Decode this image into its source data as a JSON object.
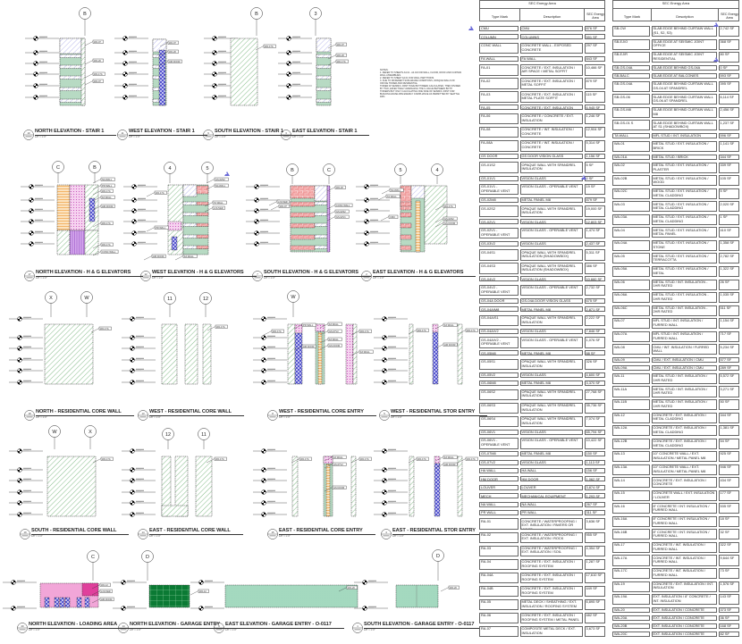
{
  "sheet": {
    "notes": {
      "heading": "NOTES:",
      "lines": [
        "1. REFER TO SHEETS A4.01 - A4.04 FOR WALL, FLOOR, ROOF AND CURTAIN WALL ASSEMBLIES.",
        "2. REFER TO SHEET A4.01 FOR WALL PARTITIONS.",
        "3. DUE TO DIFFERENT SUB-GRADE CONDITIONS, OPAQUE WALLS OF OFFICE TOWER AND RESIDENTIAL",
        "TOWER AT SEISMIC JOINT HAVE BOTH BEEN CALCULATED, THEN DIVIDED BY TWO, EFFECTIVELY AVERAGING THE U-VALUE BETWEEN BOTH TOWERS BUT ONLY CALCULATING ONE SIDE OF SEISMIC JOINT FOR BUILDING ENVELOPE ENERGY COMPLIANCE AS PERMITTED BY SEATTLE DPD."
      ]
    },
    "colors": {
      "hatch_green": "#4f9e55",
      "solid_green": "#b7dac3",
      "hatch_purple": "#8c8ce0",
      "red_grid": "#e85a5a",
      "blue_cross": "#3a3ac8",
      "pink": "#f2a6d8",
      "magenta": "#e0409c",
      "dark_green": "#0b7a34",
      "orange": "#f0a040",
      "revision": "#6a6ad8"
    },
    "scale": "1/8\" = 1'-0\"",
    "views": [
      {
        "number": "10",
        "title": "NORTH ELEVATION - STAIR 1",
        "grids": [
          "B"
        ],
        "tags": [
          "WA-07",
          "WA-20",
          "WA-17A",
          "WA-07"
        ]
      },
      {
        "number": "11",
        "title": "WEST ELEVATION - STAIR 1",
        "grids": [],
        "tags": [
          "WA-07",
          "WA-20",
          "HM DOOR"
        ]
      },
      {
        "number": "9",
        "title": "SOUTH ELEVATION - STAIR 1",
        "grids": [
          "B"
        ],
        "tags": [
          "WA-17A"
        ]
      },
      {
        "number": "3",
        "title": "EAST ELEVATION - STAIR 1",
        "grids": [
          "3"
        ],
        "tags": [
          "WA-07",
          "WA-20",
          "WA-17A"
        ]
      },
      {
        "number": "17",
        "title": "NORTH ELEVATION - H & G ELEVATORS",
        "grids": [
          "C",
          "B"
        ],
        "tags": [
          "NA WALL",
          "PR WALL",
          "WA-17A",
          "FA WALL",
          "HM DOOR",
          "WA-17A",
          "WA-17A",
          "CONC WALL"
        ]
      },
      {
        "number": "12",
        "title": "WEST ELEVATION - H & G ELEVATORS",
        "grids": [
          "4",
          "5"
        ],
        "tags": [
          "WA-17A",
          "GS-02S2",
          "NA WALL",
          "TA WALL",
          "LOUVER",
          "PR WALL",
          "HM DOOR",
          "FA WALL"
        ]
      },
      {
        "number": "7",
        "title": "SOUTH ELEVATION - H & G ELEVATORS",
        "grids": [
          "B",
          "C"
        ],
        "tags": [
          "LOUVER",
          "WA-07",
          "WA-20",
          "CONC WALL",
          "GS-02S2",
          "GS-02V1"
        ]
      },
      {
        "number": "2",
        "title": "EAST ELEVATION - H & G ELEVATORS",
        "grids": [
          "5",
          "4"
        ],
        "tags": [
          "NA WALL",
          "TA WALL",
          "CMU",
          "WA-17A",
          "GS-02S2",
          "GS DOOR"
        ]
      },
      {
        "number": "18",
        "title": "NORTH - RESIDENTIAL CORE WALL",
        "grids": [
          "X",
          "W"
        ],
        "tags": [
          "WA-17A"
        ]
      },
      {
        "number": "13",
        "title": "WEST - RESIDENTIAL CORE WALL",
        "grids": [
          "11",
          "12"
        ],
        "tags": [
          "WA-17A"
        ]
      },
      {
        "number": "8",
        "title": "WEST - RESIDENTIAL CORE ENTRY",
        "grids": [
          "W"
        ],
        "tags": [
          "WA-17A",
          "PR WALL",
          "HM DOOR",
          "FA WALL",
          "GS-07V2",
          "FA WALL",
          "GS DOOR",
          "WA-17A",
          "FA WALL"
        ]
      },
      {
        "number": "5",
        "title": "WEST - RESIDENTIAL STOR ENTRY",
        "grids": [],
        "tags": [
          "WA-17A",
          "FA WALL",
          "HM DOOR",
          "WA-17A"
        ]
      },
      {
        "number": "19",
        "title": "SOUTH - RESIDENTIAL CORE WALL",
        "grids": [
          "W",
          "X"
        ],
        "tags": [
          "WA-17A"
        ]
      },
      {
        "number": "14",
        "title": "EAST - RESIDENTIAL CORE WALL",
        "grids": [
          "12",
          "11"
        ],
        "tags": [
          "WA-17A"
        ]
      },
      {
        "number": "15",
        "title": "EAST - RESIDENTIAL CORE ENTRY",
        "grids": [],
        "tags": [
          "WA-17A",
          "FA WALL",
          "GS-07V2",
          "GS DOOR",
          "WA-17A"
        ]
      },
      {
        "number": "4",
        "title": "EAST - RESIDENTIAL STOR ENTRY",
        "grids": [],
        "tags": [
          "WA-17A",
          "FA WALL",
          "HM DOOR",
          "WA-17A"
        ]
      },
      {
        "number": "20",
        "title": "NORTH ELEVATION - LOADING AREA",
        "grids": [
          "C"
        ],
        "tags": [
          "WA-12",
          "LOUVER",
          "HM DOOR"
        ]
      },
      {
        "number": "14",
        "title": "NORTH ELEVATION - GARAGE ENTRY",
        "grids": [
          "D"
        ],
        "tags": [
          "WA-12"
        ]
      },
      {
        "number": "6",
        "title": "EAST ELEVATION - GARAGE ENTRY - O-0117",
        "grids": [],
        "tags": [
          "WA-20"
        ]
      },
      {
        "number": "1",
        "title": "SOUTH ELEVATION - GARAGE ENTRY - O-0117",
        "grids": [
          "D"
        ],
        "tags": [
          "WA-20"
        ]
      }
    ]
  },
  "schedules": [
    {
      "title": "SEC Energy Area",
      "columns": [
        "Type Mark",
        "Description",
        "SEC Energy Area"
      ],
      "rows": [
        [
          "CMU",
          "CMU",
          "876 SF"
        ],
        [
          "COLUMN",
          "COLUMNS",
          "591 SF"
        ],
        [
          "CONC WALL",
          "CONCRETE WALL - EXPOSED CONCRETE",
          "297 SF"
        ],
        [
          "FA WALL",
          "FA WALL",
          "843 SF"
        ],
        [
          "FA-01",
          "CONCRETE / EXT. INSULATION / AIR SPACE / METAL SOFFIT",
          "10,466 SF"
        ],
        [
          "FA-02",
          "CONCRETE / EXT. INSULATION / METAL SOFFIT",
          "879 SF"
        ],
        [
          "FA-03",
          "CONCRETE / EXT. INSULATION / METAL PLATE SOFFIT",
          "115 SF"
        ],
        [
          "FA-05",
          "CONCRETE / EXT. INSULATION",
          "6,945 SF"
        ],
        [
          "FA-06",
          "CONCRETE / CONCRETE / EXT. INSULATION",
          "1,246 SF"
        ],
        [
          "FA-08",
          "CONCRETE / INT. INSULATION / CONCRETE",
          "12,904 SF"
        ],
        [
          "FA-08A",
          "CONCRETE / INT. INSULATION / CONCRETE",
          "5,314 SF"
        ],
        [
          "GS DOOR",
          "GS DOOR VISION GLASS",
          "1,156 SF"
        ],
        [
          "GS-01S2",
          "OPAQUE WALL WITH SPANDREL INSULATION",
          "5 SF"
        ],
        [
          "GS-01V1",
          "VISION GLASS",
          "0 SF"
        ],
        [
          "GS-01V1 - OPERABLE VENT",
          "VISION GLASS - OPERABLE VENT",
          "19 SF"
        ],
        [
          "GS-02M8",
          "METAL PANEL M8",
          "879 SF"
        ],
        [
          "GS-02S2",
          "OPAQUE WALL WITH SPANDREL INSULATION",
          "19,000 SF"
        ],
        [
          "GS-02V1",
          "VISION GLASS",
          "12,803 SF"
        ],
        [
          "GS-02V1 - OPERABLE VENT",
          "VISION GLASS - OPERABLE VENT",
          "1,474 SF"
        ],
        [
          "GS-03V2",
          "VISION GLASS",
          "2,437 SF"
        ],
        [
          "GS-04S1",
          "OPAQUE WALL WITH SPANDREL INSULATION (SHADOWBOX)",
          "5,311 SF"
        ],
        [
          "GS-04S3",
          "OPAQUE WALL WITH SPANDREL INSULATION (SHADOWBOX)",
          "386 SF"
        ],
        [
          "GS-04V2",
          "VISION GLASS",
          "10,660 SF"
        ],
        [
          "GS-04V2 - OPERABLE VENT",
          "VISION GLASS - OPERABLE VENT",
          "2,732 SF"
        ],
        [
          "GS-04A DOOR",
          "GS-04A DOOR VISION GLASS",
          "675 SF"
        ],
        [
          "GS-04A/M8",
          "METAL PANEL M8",
          "2,871 SF"
        ],
        [
          "GS-04A/S1",
          "OPAQUE WALL WITH SPANDREL INSULATION",
          "2,222 SF"
        ],
        [
          "GS-04A/V2",
          "VISION GLASS",
          "7,846 SF"
        ],
        [
          "GS-04A/V2 - OPERABLE VENT",
          "VISION GLASS - OPERABLE VENT",
          "1,076 SF"
        ],
        [
          "GS-05M8",
          "METAL PANEL M8",
          "88 SF"
        ],
        [
          "GS-05S1",
          "OPAQUE WALL WITH SPANDREL INSULATION",
          "326 SF"
        ],
        [
          "GS-05V2",
          "VISION GLASS",
          "4,600 SF"
        ],
        [
          "GS-06M8",
          "METAL PANEL M8",
          "3,370 SF"
        ],
        [
          "GS-06S2",
          "OPAQUE WALL WITH SPANDREL INSULATION",
          "27,768 SF"
        ],
        [
          "GS-06S3",
          "OPAQUE WALL WITH SPANDREL INSULATION",
          "35,736 SF"
        ],
        [
          "GS-06S4",
          "OPAQUE WALL WITH SPANDREL INSULATION",
          "7,074 SF"
        ],
        [
          "GS-06V1",
          "VISION GLASS",
          "65,794 SF"
        ],
        [
          "GS-06V1 - OPERABLE VENT",
          "VISION GLASS - OPERABLE VENT",
          "10,422 SF"
        ],
        [
          "GS-07M8",
          "METAL PANEL M8",
          "150 SF"
        ],
        [
          "GS-07V2",
          "VISION GLASS",
          "1,113 SF"
        ],
        [
          "HA WALL",
          "HA WALL",
          "156 SF"
        ],
        [
          "HM DOOR",
          "HM DOOR",
          "1,062 SF"
        ],
        [
          "LOUVER",
          "LOUVER",
          "3,874 SF"
        ],
        [
          "MECH",
          "MECHANICAL EQUIPMENT",
          "1,293 SF"
        ],
        [
          "NA WALL",
          "NA WALL",
          "267 SF"
        ],
        [
          "PR WALL",
          "PR WALL",
          "311 SF"
        ],
        [
          "RA-01",
          "CONCRETE / WATERPROOFING / EXT. INSULATION / PAVERS OR WOOD",
          "3,636 SF"
        ],
        [
          "RA-02",
          "CONCRETE / WATERPROOFING / EXT. INSULATION / ROCK",
          "955 SF"
        ],
        [
          "RA-03",
          "CONCRETE / WATERPROOFING / EXT. INSULATION / SOIL",
          "4,354 SF"
        ],
        [
          "RA-04",
          "CONCRETE / EXT. INSULATION / ROOFING SYSTEM",
          "1,287 SF"
        ],
        [
          "RA-04A",
          "CONCRETE / EXT. INSULATION / ROOFING SYSTEM",
          "17,610 SF"
        ],
        [
          "RA-04B",
          "CONCRETE / EXT. INSULATION / ROOFING SYSTEM",
          "449 SF"
        ],
        [
          "RA-05",
          "METAL DECK / SHEATHING / EXT. INSULATION / ROOFING SYSTEM",
          "6,895 SF"
        ],
        [
          "RA-06",
          "CONCRETE / EXT. INSULATION / ROOFING SYSTEM / METAL PANEL",
          "482 SF"
        ],
        [
          "RA-07",
          "COMPOSITE METAL DECK / EXT. INSULATION",
          "3,673 SF"
        ]
      ]
    },
    {
      "title": "SEC Energy Area",
      "columns": [
        "Type Mark",
        "Description",
        "SEC Energy Area"
      ],
      "rows": [
        [
          "SB-CW",
          "SLAB EDGE BEHIND CURTAIN WALL (S1, S2, S3)",
          "2,742 SF"
        ],
        [
          "SB-EJ/O",
          "SLAB EDGE AT SEISMIC JOINT OFFICE",
          "368 SF"
        ],
        [
          "SB-EJ/R",
          "SLAB EDGE AT SEISMIC JOINT RESIDENTIAL",
          "80 SF"
        ],
        [
          "SB-GS-04A",
          "SLAB EDGE BEHIND GS-04A",
          "0 SF"
        ],
        [
          "SB-BALC",
          "SLAB EDGE AT BALCONIES",
          "593 SF"
        ],
        [
          "SB-GS-04A",
          "SLAB EDGE BEHIND CURTAIN WALL GS-04 AT SPANDREL",
          "395 SF"
        ],
        [
          "SB-GS-06",
          "SLAB EDGE BEHIND CURTAIN WALL GS-06 AT SPANDREL",
          "6,114 SF"
        ],
        [
          "SB-GS-M8",
          "SLAB EDGE BEHIND CURTAIN WALL M8",
          "2,456 SF"
        ],
        [
          "SB-GS-01 S",
          "SLAB EDGE BEHIND CURTAIN WALL AT S1 (SHADOWBOX)",
          "1,237 SF"
        ],
        [
          "TA WALL",
          "MFL STUD / INT. INSULATION",
          "596 SF"
        ],
        [
          "WA-01",
          "METAL STUD / EXT. INSULATION / BRICK",
          "1,141 SF"
        ],
        [
          "WA-01A",
          "METAL STUD / BRICK",
          "344 SF"
        ],
        [
          "WA-02",
          "METAL STUD / EXT. INSULATION / PLASTER",
          "339 SF"
        ],
        [
          "WA-02B",
          "METAL STUD / EXT. INSULATION / WOOD",
          "105 SF"
        ],
        [
          "WA-02C",
          "METAL STUD / EXT. INSULATION / METAL CLADDING",
          "5 SF"
        ],
        [
          "WA-03",
          "METAL STUD / EXT. INSULATION / METAL CLADDING",
          "2,020 SF"
        ],
        [
          "WA-03A",
          "METAL STUD / EXT. INSULATION / METAL CLADDING",
          "1 SF"
        ],
        [
          "WA-04",
          "METAL STUD / EXT. INSULATION / METAL PANEL",
          "410 SF"
        ],
        [
          "WA-04A",
          "METAL STUD / EXT. INSULATION / STONE",
          "1,358 SF"
        ],
        [
          "WA-05",
          "METAL STUD / EXT. INSULATION / TERRACOTTA",
          "2,782 SF"
        ],
        [
          "WA-05A",
          "METAL STUD / EXT. INSULATION / METAL",
          "1,322 SF"
        ],
        [
          "WA-06",
          "METAL STUD / INT. INSULATION - 1HR RATED",
          "26 SF"
        ],
        [
          "WA-06A",
          "METAL STUD / EXT. INSULATION - 1HR RATED",
          "1,035 SF"
        ],
        [
          "WA-06C",
          "METAL STUD / INT. INSULATION - 2HR RATED",
          "511 SF"
        ],
        [
          "WA-07",
          "MFL STUD / INT. INSULATION / FURRED WALL",
          "1,154 SF"
        ],
        [
          "WA-07A",
          "MFL STUD / INT. INSULATION / FURRED WALL",
          "717 SF"
        ],
        [
          "WA-08",
          "CMU / INT. INSULATION / FURRED WALL",
          "5,234 SF"
        ],
        [
          "WA-09",
          "CMU / EXT. INSULATION / CMU",
          "577 SF"
        ],
        [
          "WA-09A",
          "CMU / EXT. INSULATION / CMU",
          "289 SF"
        ],
        [
          "WA-11",
          "METAL STUD / INT. INSULATION / 1HR RATED",
          "5,572 SF"
        ],
        [
          "WA-11A",
          "METAL STUD / INT. INSULATION / 1HR RATED",
          "3,271 SF"
        ],
        [
          "WA-11B",
          "METAL STUD / INT. INSULATION / 1HR RATED",
          "50 SF"
        ],
        [
          "WA-12",
          "CONCRETE / EXT. INSULATION / METAL CLADDING",
          "344 SF"
        ],
        [
          "WA-12A",
          "CONCRETE / EXT. INSULATION / METAL CLADDING",
          "1,381 SF"
        ],
        [
          "WA-12B",
          "CONCRETE / EXT. INSULATION / METAL CLADDING",
          "54 SF"
        ],
        [
          "WA-13",
          "10\" CONCRETE WALL / EXT. INSULATION / METAL PANEL M8",
          "925 SF"
        ],
        [
          "WA-13A",
          "10\" CONCRETE WALL / EXT. INSULATION / METAL PANEL M8",
          "946 SF"
        ],
        [
          "WA-14",
          "CONCRETE / EXT. INSULATION / CONCRETE",
          "434 SF"
        ],
        [
          "WA-15",
          "CONCRETE WALL / EXT. INSULATION / LOUVER",
          "177 SF"
        ],
        [
          "WA-16",
          "8\" CONCRETE / INT. INSULATION / FURRED WALL",
          "535 SF"
        ],
        [
          "WA-16A",
          "8\" CONCRETE / INT. INSULATION / FURRED WALL",
          "18 SF"
        ],
        [
          "WA-16B",
          "8\" CONCRETE / INT. INSULATION / FURRED WALL",
          "32 SF"
        ],
        [
          "WA-17",
          "CONCRETE / INT. INSULATION / FURRED WALL",
          "322 SF"
        ],
        [
          "WA-17A",
          "CONCRETE / INT. INSULATION / FURRED WALL",
          "9,644 SF"
        ],
        [
          "WA-17C",
          "CONCRETE / INT. INSULATION / FURRED WALL",
          "73 SF"
        ],
        [
          "WA-19",
          "CONCRETE / EXT. INSULATION / INT. INSULATION",
          "1,576 SF"
        ],
        [
          "WA-19A",
          "EXT. INSULATION / 8\" CONCRETE / INT. INSULATION",
          "143 SF"
        ],
        [
          "WA-20",
          "EXT. INSULATION / CONCRETE",
          "373 SF"
        ],
        [
          "WA-20A",
          "EXT. INSULATION / CONCRETE",
          "36 SF"
        ],
        [
          "WA-20B",
          "EXT. INSULATION / CONCRETE",
          "168 SF"
        ],
        [
          "WA-20C",
          "EXT. INSULATION / CONCRETE",
          "82 SF"
        ]
      ]
    }
  ]
}
